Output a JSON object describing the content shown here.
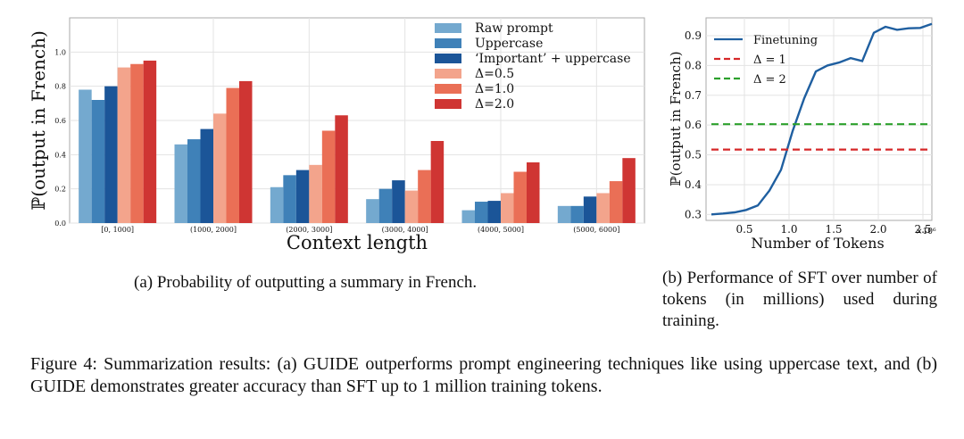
{
  "chart_data": [
    {
      "type": "bar",
      "title": "",
      "xlabel": "Context length",
      "ylabel": "ℙ(output in French)",
      "ylim": [
        0,
        1.2
      ],
      "yticks": [
        "0.0",
        "0.2",
        "0.4",
        "0.6",
        "0.8",
        "1.0"
      ],
      "categories": [
        "[0, 1000]",
        "(1000, 2000]",
        "(2000, 3000]",
        "(3000, 4000]",
        "(4000, 5000]",
        "(5000, 6000]"
      ],
      "legend_position": "top-right",
      "series": [
        {
          "name": "Raw prompt",
          "color": "#74a9cf",
          "values": [
            0.78,
            0.46,
            0.21,
            0.14,
            0.075,
            0.1
          ]
        },
        {
          "name": "Uppercase",
          "color": "#3f81b8",
          "values": [
            0.72,
            0.49,
            0.28,
            0.2,
            0.125,
            0.1
          ]
        },
        {
          "name": "‘Important’ + uppercase",
          "color": "#1b5598",
          "values": [
            0.8,
            0.55,
            0.31,
            0.25,
            0.13,
            0.155
          ]
        },
        {
          "name": "Δ=0.5",
          "color": "#f3a48c",
          "values": [
            0.91,
            0.64,
            0.34,
            0.19,
            0.175,
            0.175
          ]
        },
        {
          "name": "Δ=1.0",
          "color": "#ea6f56",
          "values": [
            0.93,
            0.79,
            0.54,
            0.31,
            0.3,
            0.245
          ]
        },
        {
          "name": "Δ=2.0",
          "color": "#cf3533",
          "values": [
            0.95,
            0.83,
            0.63,
            0.48,
            0.355,
            0.38
          ]
        }
      ]
    },
    {
      "type": "line",
      "title": "",
      "xlabel": "Number of Tokens",
      "ylabel": "ℙ(output in French)",
      "x_scale_label": "×10⁶",
      "xlim": [
        0.07,
        2.6
      ],
      "ylim": [
        0.28,
        0.96
      ],
      "xticks": [
        0.5,
        1.0,
        1.5,
        2.0,
        2.5
      ],
      "xtick_labels": [
        "0.5",
        "1.0",
        "1.5",
        "2.0",
        "2.5"
      ],
      "yticks": [
        0.3,
        0.4,
        0.5,
        0.6,
        0.7,
        0.8,
        0.9
      ],
      "ytick_labels": [
        "0.3",
        "0.4",
        "0.5",
        "0.6",
        "0.7",
        "0.8",
        "0.9"
      ],
      "legend_position": "top-left",
      "series": [
        {
          "name": "Finetuning",
          "color": "#1f5fa0",
          "style": "solid",
          "x": [
            0.13,
            0.26,
            0.39,
            0.52,
            0.65,
            0.78,
            0.91,
            1.04,
            1.17,
            1.3,
            1.43,
            1.56,
            1.69,
            1.82,
            1.95,
            2.08,
            2.21,
            2.34,
            2.47,
            2.6
          ],
          "y": [
            0.3,
            0.303,
            0.307,
            0.315,
            0.33,
            0.38,
            0.45,
            0.58,
            0.69,
            0.78,
            0.8,
            0.81,
            0.825,
            0.815,
            0.91,
            0.93,
            0.92,
            0.925,
            0.926,
            0.94
          ]
        },
        {
          "name": "Δ = 1",
          "color": "#d62728",
          "style": "dashed",
          "x": [
            0.13,
            2.6
          ],
          "y": [
            0.518,
            0.518
          ]
        },
        {
          "name": "Δ = 2",
          "color": "#2ca02c",
          "style": "dashed",
          "x": [
            0.13,
            2.6
          ],
          "y": [
            0.603,
            0.603
          ]
        }
      ]
    }
  ],
  "captions": {
    "a": "(a) Probability of outputting a summary in French.",
    "b": "(b) Performance of SFT over number of tokens (in millions) used during training.",
    "figure": "Figure 4: Summarization results: (a) GUIDE outperforms prompt engineering techniques like using uppercase text, and (b) GUIDE demonstrates greater accuracy than SFT up to 1 million training tokens."
  }
}
